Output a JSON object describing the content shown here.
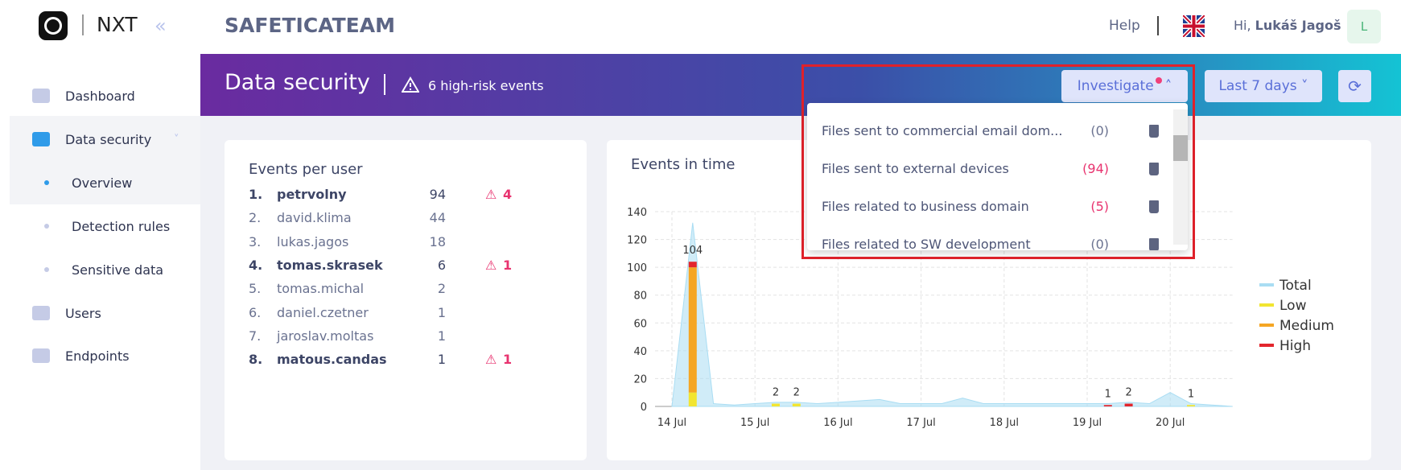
{
  "header": {
    "logo": "NXT",
    "company": "SAFETICATEAM",
    "help": "Help",
    "greeting": "Hi,",
    "user": "Lukáš Jagoš",
    "avatar": "L"
  },
  "sidebar": {
    "items": [
      {
        "label": "Dashboard"
      },
      {
        "label": "Data security"
      },
      {
        "label": "Overview"
      },
      {
        "label": "Detection rules"
      },
      {
        "label": "Sensitive data"
      },
      {
        "label": "Users"
      },
      {
        "label": "Endpoints"
      }
    ]
  },
  "banner": {
    "title": "Data security",
    "alert": "6 high-risk events",
    "investigate": "Investigate",
    "period": "Last 7 days"
  },
  "dropdown": {
    "items": [
      {
        "label": "Files sent to commercial email dom...",
        "count": "(0)"
      },
      {
        "label": "Files sent to external devices",
        "count": "(94)"
      },
      {
        "label": "Files related to business domain",
        "count": "(5)"
      },
      {
        "label": "Files related to SW development",
        "count": "(0)"
      }
    ]
  },
  "users": {
    "title": "Events per user",
    "rows": [
      {
        "rank": "1.",
        "name": "petrvolny",
        "events": 94,
        "risk": 4
      },
      {
        "rank": "2.",
        "name": "david.klima",
        "events": 44
      },
      {
        "rank": "3.",
        "name": "lukas.jagos",
        "events": 18
      },
      {
        "rank": "4.",
        "name": "tomas.skrasek",
        "events": 6,
        "risk": 1
      },
      {
        "rank": "5.",
        "name": "tomas.michal",
        "events": 2
      },
      {
        "rank": "6.",
        "name": "daniel.czetner",
        "events": 1
      },
      {
        "rank": "7.",
        "name": "jaroslav.moltas",
        "events": 1
      },
      {
        "rank": "8.",
        "name": "matous.candas",
        "events": 1,
        "risk": 1
      }
    ]
  },
  "chart_data": {
    "type": "stacked_bar_area",
    "title": "Events in time",
    "categories": [
      "14 Jul",
      null,
      null,
      null,
      "15 Jul",
      null,
      null,
      null,
      "16 Jul",
      null,
      null,
      null,
      "17 Jul",
      null,
      null,
      null,
      "18 Jul",
      null,
      null,
      null,
      "19 Jul",
      null,
      null,
      null,
      "20 Jul",
      null,
      null,
      null
    ],
    "series": [
      {
        "name": "Total",
        "color": "#a9ddf3",
        "values": [
          0,
          132,
          2,
          1,
          2,
          3,
          3,
          2,
          3,
          4,
          5,
          2,
          2,
          2,
          6,
          2,
          2,
          2,
          2,
          2,
          2,
          2,
          3,
          2,
          10,
          2,
          1,
          0
        ]
      },
      {
        "name": "Low",
        "color": "#f2e531",
        "values": [
          0,
          10,
          0,
          0,
          0,
          2,
          2,
          0,
          0,
          0,
          0,
          0,
          0,
          0,
          0,
          0,
          0,
          0,
          0,
          0,
          0,
          0,
          0,
          0,
          0,
          1,
          0,
          0
        ]
      },
      {
        "name": "Medium",
        "color": "#f5a623",
        "values": [
          0,
          90,
          0,
          0,
          0,
          0,
          0,
          0,
          0,
          0,
          0,
          0,
          0,
          0,
          0,
          0,
          0,
          0,
          0,
          0,
          0,
          0,
          0,
          0,
          0,
          0,
          0,
          0
        ]
      },
      {
        "name": "High",
        "color": "#e3262d",
        "values": [
          0,
          4,
          0,
          0,
          0,
          0,
          0,
          0,
          0,
          0,
          0,
          0,
          0,
          0,
          0,
          0,
          0,
          0,
          0,
          0,
          0,
          1,
          2,
          0,
          0,
          0,
          0,
          0
        ]
      }
    ],
    "stack_labels": [
      null,
      104,
      null,
      null,
      null,
      2,
      2,
      null,
      null,
      null,
      null,
      null,
      null,
      null,
      null,
      null,
      null,
      null,
      null,
      null,
      null,
      1,
      2,
      null,
      null,
      1,
      null,
      null
    ],
    "ylim": [
      0,
      140
    ],
    "yticks": [
      0,
      20,
      40,
      60,
      80,
      100,
      120,
      140
    ],
    "grid": true,
    "legend": "right"
  }
}
